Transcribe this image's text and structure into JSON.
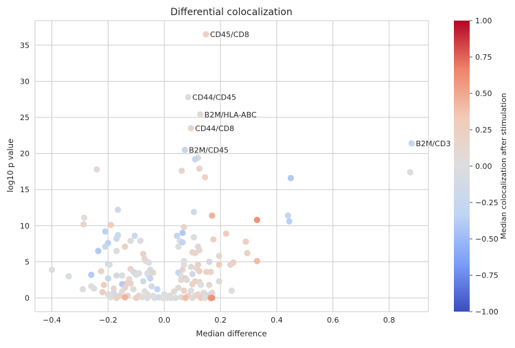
{
  "chart_data": {
    "type": "scatter",
    "title": "Differential colocalization",
    "xlabel": "Median difference",
    "ylabel": "log10 p value",
    "xlim": [
      -0.46,
      0.94
    ],
    "ylim": [
      -1.9,
      38.4
    ],
    "xticks": [
      -0.4,
      -0.2,
      0.0,
      0.2,
      0.4,
      0.6,
      0.8
    ],
    "xtick_labels": [
      "−0.4",
      "−0.2",
      "0.0",
      "0.2",
      "0.4",
      "0.6",
      "0.8"
    ],
    "yticks": [
      0,
      5,
      10,
      15,
      20,
      25,
      30,
      35
    ],
    "ytick_labels": [
      "0",
      "5",
      "10",
      "15",
      "20",
      "25",
      "30",
      "35"
    ],
    "grid": true,
    "colorbar": {
      "label": "Median colocalization after stimulation",
      "range": [
        -1.0,
        1.0
      ],
      "ticks": [
        1.0,
        0.75,
        0.5,
        0.25,
        0.0,
        -0.25,
        -0.5,
        -0.75,
        -1.0
      ],
      "tick_labels": [
        "1.00",
        "0.75",
        "0.50",
        "0.25",
        "0.00",
        "−0.25",
        "−0.50",
        "−0.75",
        "−1.00"
      ],
      "colormap": "coolwarm",
      "colors": [
        "#3b4cc0",
        "#7b9ff9",
        "#c0d4f5",
        "#dddddd",
        "#f2cbb7",
        "#ee8468",
        "#b40426"
      ]
    },
    "annotations": [
      {
        "text": "CD45/CD8",
        "x": 0.148,
        "y": 36.5
      },
      {
        "text": "CD44/CD45",
        "x": 0.085,
        "y": 27.8
      },
      {
        "text": "B2M/HLA-ABC",
        "x": 0.128,
        "y": 25.4
      },
      {
        "text": "CD44/CD8",
        "x": 0.095,
        "y": 23.5
      },
      {
        "text": "B2M/CD45",
        "x": 0.073,
        "y": 20.5
      },
      {
        "text": "B2M/CD3",
        "x": 0.88,
        "y": 21.4
      }
    ],
    "points": [
      {
        "x": 0.148,
        "y": 36.5,
        "c": 0.2
      },
      {
        "x": 0.085,
        "y": 27.8,
        "c": 0.0
      },
      {
        "x": 0.128,
        "y": 25.4,
        "c": 0.05
      },
      {
        "x": 0.095,
        "y": 23.5,
        "c": 0.15
      },
      {
        "x": 0.073,
        "y": 20.5,
        "c": -0.25
      },
      {
        "x": 0.88,
        "y": 21.4,
        "c": -0.25
      },
      {
        "x": 0.875,
        "y": 17.4,
        "c": 0.0
      },
      {
        "x": 0.45,
        "y": 16.6,
        "c": -0.4
      },
      {
        "x": 0.44,
        "y": 11.4,
        "c": -0.3
      },
      {
        "x": 0.445,
        "y": 10.6,
        "c": -0.35
      },
      {
        "x": -0.24,
        "y": 17.8,
        "c": 0.08
      },
      {
        "x": 0.062,
        "y": 17.6,
        "c": 0.15
      },
      {
        "x": 0.12,
        "y": 19.4,
        "c": 0.12
      },
      {
        "x": 0.11,
        "y": 19.2,
        "c": -0.3
      },
      {
        "x": 0.125,
        "y": 17.9,
        "c": 0.15
      },
      {
        "x": 0.145,
        "y": 16.7,
        "c": 0.2
      },
      {
        "x": -0.165,
        "y": 12.2,
        "c": -0.15
      },
      {
        "x": 0.105,
        "y": 11.9,
        "c": -0.15
      },
      {
        "x": 0.17,
        "y": 11.4,
        "c": 0.45
      },
      {
        "x": 0.33,
        "y": 10.8,
        "c": 0.6
      },
      {
        "x": -0.285,
        "y": 11.1,
        "c": 0.0
      },
      {
        "x": -0.287,
        "y": 10.2,
        "c": 0.2
      },
      {
        "x": -0.19,
        "y": 10.1,
        "c": 0.3
      },
      {
        "x": 0.07,
        "y": 9.8,
        "c": 0.15
      },
      {
        "x": -0.21,
        "y": 9.2,
        "c": -0.35
      },
      {
        "x": 0.065,
        "y": 9.0,
        "c": -0.4
      },
      {
        "x": 0.22,
        "y": 8.9,
        "c": 0.3
      },
      {
        "x": -0.165,
        "y": 8.7,
        "c": -0.2
      },
      {
        "x": -0.105,
        "y": 8.6,
        "c": -0.2
      },
      {
        "x": 0.045,
        "y": 8.6,
        "c": -0.3
      },
      {
        "x": 0.105,
        "y": 8.4,
        "c": -0.05
      },
      {
        "x": -0.17,
        "y": 8.2,
        "c": -0.2
      },
      {
        "x": 0.175,
        "y": 8.1,
        "c": 0.25
      },
      {
        "x": -0.12,
        "y": 7.9,
        "c": 0.0
      },
      {
        "x": -0.085,
        "y": 7.9,
        "c": -0.05
      },
      {
        "x": 0.055,
        "y": 7.9,
        "c": 0.0
      },
      {
        "x": 0.065,
        "y": 7.7,
        "c": -0.3
      },
      {
        "x": 0.29,
        "y": 7.8,
        "c": 0.25
      },
      {
        "x": -0.2,
        "y": 7.6,
        "c": -0.35
      },
      {
        "x": -0.21,
        "y": 7.1,
        "c": -0.2
      },
      {
        "x": -0.14,
        "y": 7.1,
        "c": 0.25
      },
      {
        "x": 0.05,
        "y": 7.1,
        "c": 0.0
      },
      {
        "x": 0.12,
        "y": 7.1,
        "c": 0.05
      },
      {
        "x": 0.125,
        "y": 6.6,
        "c": 0.12
      },
      {
        "x": -0.235,
        "y": 6.5,
        "c": -0.4
      },
      {
        "x": -0.17,
        "y": 6.5,
        "c": 0.0
      },
      {
        "x": 0.1,
        "y": 6.3,
        "c": 0.2
      },
      {
        "x": 0.11,
        "y": 6.2,
        "c": 0.15
      },
      {
        "x": 0.295,
        "y": 6.2,
        "c": 0.2
      },
      {
        "x": -0.075,
        "y": 6.1,
        "c": 0.2
      },
      {
        "x": 0.195,
        "y": 5.8,
        "c": 0.1
      },
      {
        "x": -0.07,
        "y": 5.4,
        "c": 0.15
      },
      {
        "x": -0.065,
        "y": 5.1,
        "c": 0.1
      },
      {
        "x": 0.07,
        "y": 5.1,
        "c": 0.0
      },
      {
        "x": 0.33,
        "y": 5.1,
        "c": 0.4
      },
      {
        "x": -0.055,
        "y": 4.9,
        "c": 0.0
      },
      {
        "x": 0.16,
        "y": 5.0,
        "c": -0.1
      },
      {
        "x": 0.245,
        "y": 4.9,
        "c": 0.3
      },
      {
        "x": -0.2,
        "y": 4.7,
        "c": -0.25
      },
      {
        "x": -0.195,
        "y": 4.6,
        "c": 0.0
      },
      {
        "x": 0.07,
        "y": 4.6,
        "c": 0.0
      },
      {
        "x": 0.12,
        "y": 4.6,
        "c": 0.25
      },
      {
        "x": 0.195,
        "y": 4.6,
        "c": 0.3
      },
      {
        "x": 0.235,
        "y": 4.6,
        "c": 0.15
      },
      {
        "x": 0.095,
        "y": 4.3,
        "c": 0.05
      },
      {
        "x": 0.115,
        "y": 4.1,
        "c": 0.12
      },
      {
        "x": -0.12,
        "y": 4.0,
        "c": 0.2
      },
      {
        "x": -0.4,
        "y": 3.9,
        "c": 0.0
      },
      {
        "x": -0.05,
        "y": 3.9,
        "c": -0.1
      },
      {
        "x": 0.065,
        "y": 3.9,
        "c": 0.15
      },
      {
        "x": 0.125,
        "y": 3.7,
        "c": 0.2
      },
      {
        "x": 0.15,
        "y": 3.6,
        "c": 0.2
      },
      {
        "x": 0.165,
        "y": 3.6,
        "c": 0.2
      },
      {
        "x": -0.225,
        "y": 3.7,
        "c": 0.2
      },
      {
        "x": 0.05,
        "y": 3.5,
        "c": -0.25
      },
      {
        "x": -0.11,
        "y": 3.6,
        "c": 0.0
      },
      {
        "x": -0.105,
        "y": 3.5,
        "c": -0.1
      },
      {
        "x": -0.09,
        "y": 3.4,
        "c": -0.05
      },
      {
        "x": -0.06,
        "y": 3.4,
        "c": -0.05
      },
      {
        "x": -0.04,
        "y": 3.5,
        "c": 0.2
      },
      {
        "x": 0.1,
        "y": 3.3,
        "c": -0.15
      },
      {
        "x": -0.34,
        "y": 3.0,
        "c": -0.05
      },
      {
        "x": -0.26,
        "y": 3.2,
        "c": -0.4
      },
      {
        "x": -0.17,
        "y": 3.1,
        "c": -0.1
      },
      {
        "x": -0.15,
        "y": 3.1,
        "c": 0.0
      },
      {
        "x": -0.1,
        "y": 3.2,
        "c": -0.05
      },
      {
        "x": -0.055,
        "y": 3.1,
        "c": -0.05
      },
      {
        "x": 0.06,
        "y": 3.0,
        "c": 0.0
      },
      {
        "x": -0.2,
        "y": 2.7,
        "c": -0.25
      },
      {
        "x": -0.125,
        "y": 2.6,
        "c": 0.1
      },
      {
        "x": -0.05,
        "y": 2.7,
        "c": -0.3
      },
      {
        "x": 0.075,
        "y": 2.7,
        "c": 0.3
      },
      {
        "x": 0.06,
        "y": 2.5,
        "c": 0.1
      },
      {
        "x": 0.08,
        "y": 2.5,
        "c": -0.05
      },
      {
        "x": -0.075,
        "y": 2.3,
        "c": -0.15
      },
      {
        "x": 0.11,
        "y": 2.3,
        "c": 0.2
      },
      {
        "x": 0.125,
        "y": 2.2,
        "c": 0.15
      },
      {
        "x": 0.195,
        "y": 2.3,
        "c": 0.05
      },
      {
        "x": -0.135,
        "y": 2.0,
        "c": 0.2
      },
      {
        "x": -0.15,
        "y": 1.9,
        "c": -0.4
      },
      {
        "x": -0.12,
        "y": 2.0,
        "c": 0.2
      },
      {
        "x": -0.215,
        "y": 1.8,
        "c": 0.25
      },
      {
        "x": 0.1,
        "y": 1.9,
        "c": 0.2
      },
      {
        "x": 0.13,
        "y": 1.8,
        "c": 0.0
      },
      {
        "x": 0.16,
        "y": 1.8,
        "c": 0.1
      },
      {
        "x": -0.26,
        "y": 1.6,
        "c": 0.0
      },
      {
        "x": -0.045,
        "y": 1.6,
        "c": -0.1
      },
      {
        "x": -0.25,
        "y": 1.3,
        "c": -0.05
      },
      {
        "x": -0.18,
        "y": 1.3,
        "c": 0.15
      },
      {
        "x": -0.29,
        "y": 1.2,
        "c": 0.0
      },
      {
        "x": -0.14,
        "y": 1.4,
        "c": 0.2
      },
      {
        "x": 0.05,
        "y": 1.4,
        "c": 0.05
      },
      {
        "x": -0.025,
        "y": 1.2,
        "c": -0.3
      },
      {
        "x": -0.11,
        "y": 1.2,
        "c": 0.0
      },
      {
        "x": 0.07,
        "y": 1.0,
        "c": 0.2
      },
      {
        "x": 0.095,
        "y": 1.0,
        "c": 0.0
      },
      {
        "x": 0.24,
        "y": 1.0,
        "c": 0.0
      },
      {
        "x": -0.15,
        "y": 0.9,
        "c": 0.0
      },
      {
        "x": -0.07,
        "y": 0.9,
        "c": 0.0
      },
      {
        "x": 0.035,
        "y": 0.9,
        "c": 0.05
      },
      {
        "x": -0.18,
        "y": 0.7,
        "c": -0.1
      },
      {
        "x": -0.22,
        "y": 0.8,
        "c": 0.3
      },
      {
        "x": 0.14,
        "y": 0.7,
        "c": 0.1
      },
      {
        "x": 0.17,
        "y": 0.7,
        "c": 0.15
      },
      {
        "x": -0.2,
        "y": 0.5,
        "c": -0.05
      },
      {
        "x": -0.06,
        "y": 0.5,
        "c": 0.0
      },
      {
        "x": 0.0,
        "y": 0.5,
        "c": 0.0
      },
      {
        "x": 0.12,
        "y": 0.5,
        "c": 0.05
      },
      {
        "x": 0.155,
        "y": 0.4,
        "c": -0.15
      },
      {
        "x": -0.16,
        "y": 0.3,
        "c": 0.2
      },
      {
        "x": -0.13,
        "y": 0.3,
        "c": 0.1
      },
      {
        "x": -0.09,
        "y": 0.3,
        "c": 0.15
      },
      {
        "x": -0.04,
        "y": 0.3,
        "c": 0.0
      },
      {
        "x": 0.02,
        "y": 0.3,
        "c": -0.1
      },
      {
        "x": 0.085,
        "y": 0.3,
        "c": 0.2
      },
      {
        "x": 0.11,
        "y": 0.3,
        "c": 0.15
      },
      {
        "x": -0.19,
        "y": 0.1,
        "c": 0.0
      },
      {
        "x": -0.17,
        "y": 0.0,
        "c": 0.2
      },
      {
        "x": -0.14,
        "y": 0.1,
        "c": 0.45
      },
      {
        "x": -0.1,
        "y": 0.0,
        "c": 0.2
      },
      {
        "x": -0.08,
        "y": 0.1,
        "c": 0.0
      },
      {
        "x": -0.06,
        "y": 0.0,
        "c": 0.0
      },
      {
        "x": -0.035,
        "y": 0.0,
        "c": 0.0
      },
      {
        "x": -0.02,
        "y": 0.1,
        "c": -0.1
      },
      {
        "x": -0.005,
        "y": 0.0,
        "c": 0.0
      },
      {
        "x": 0.01,
        "y": 0.0,
        "c": 0.0
      },
      {
        "x": 0.025,
        "y": 0.0,
        "c": 0.0
      },
      {
        "x": 0.04,
        "y": 0.0,
        "c": -0.05
      },
      {
        "x": 0.06,
        "y": 0.1,
        "c": 0.0
      },
      {
        "x": 0.075,
        "y": 0.0,
        "c": 0.4
      },
      {
        "x": 0.1,
        "y": 0.0,
        "c": 0.05
      },
      {
        "x": 0.13,
        "y": 0.0,
        "c": 0.3
      },
      {
        "x": 0.145,
        "y": 0.0,
        "c": 0.0
      },
      {
        "x": 0.165,
        "y": 0.0,
        "c": 0.55
      },
      {
        "x": 0.17,
        "y": 0.0,
        "c": 0.6
      }
    ]
  }
}
